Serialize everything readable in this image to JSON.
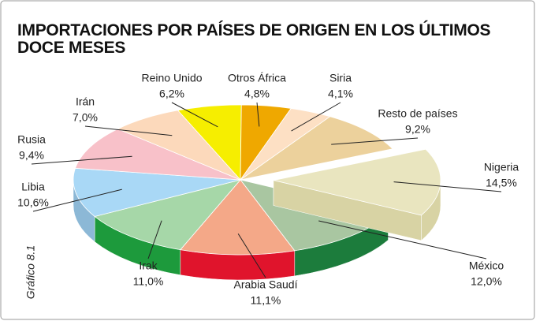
{
  "chart_data": {
    "type": "pie",
    "title": "IMPORTACIONES POR PAÍSES DE ORIGEN EN LOS ÚLTIMOS DOCE MESES",
    "side_label": "Gráfico 8.1",
    "categories": [
      "Reino Unido",
      "Otros África",
      "Siria",
      "Resto de países",
      "Nigeria",
      "México",
      "Arabia Saudí",
      "Irak",
      "Libia",
      "Rusia",
      "Irán"
    ],
    "values": [
      6.2,
      4.8,
      4.1,
      9.2,
      14.5,
      12.0,
      11.1,
      11.0,
      10.6,
      9.4,
      7.0
    ],
    "value_labels": [
      "6,2%",
      "4,8%",
      "4,1%",
      "9,2%",
      "14,5%",
      "12,0%",
      "11,1%",
      "11,0%",
      "10,6%",
      "9,4%",
      "7,0%"
    ],
    "colors": [
      "#f6ee00",
      "#efa800",
      "#fde0c4",
      "#ecd19c",
      "#e9e5bf",
      "#a9c6a1",
      "#f4a888",
      "#a6d7a8",
      "#a9d8f6",
      "#f8c1c9",
      "#fcd9bb"
    ],
    "side_colors": [
      "#c9c200",
      "#c08600",
      "#d9b898",
      "#c6ab78",
      "#d8d3a4",
      "#1c7c3c",
      "#e0142c",
      "#1d9a3c",
      "#8cb8d6",
      "#d8a0a8",
      "#dcb898"
    ],
    "exploded": "Nigeria"
  }
}
